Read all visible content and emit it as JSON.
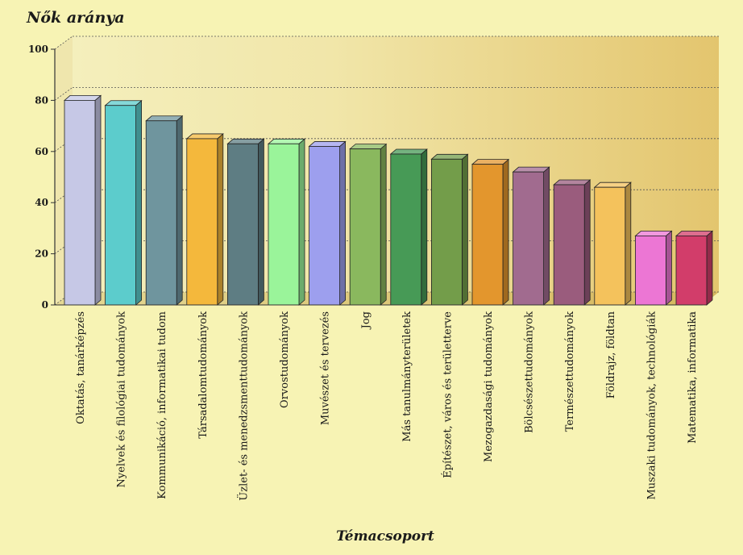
{
  "chart_data": {
    "type": "bar",
    "title": "Nők aránya",
    "xlabel": "Témacsoport",
    "ylabel": "",
    "ylim": [
      0,
      100
    ],
    "yticks": [
      "0",
      "20",
      "40",
      "60",
      "80",
      "100"
    ],
    "grid": true,
    "categories": [
      "Oktatás, tanárképzés",
      "Nyelvek és filológiai tudományok",
      "Kommunikáció, informatikai tudom",
      "Társadalomtudományok",
      "Üzlet- és menedzsmenttudományok",
      "Orvostudományok",
      "Muvészet és tervezés",
      "Jog",
      "Más tanulmányterületek",
      "Építészet, város és területterve",
      "Mezogazdasági tudományok",
      "Bölcsészettudományok",
      "Természettudományok",
      "Földrajz, földtan",
      "Muszaki tudományok, technológiák",
      "Matematika, informatika"
    ],
    "values": [
      80,
      78,
      72,
      65,
      63,
      63,
      62,
      61,
      59,
      57,
      55,
      52,
      47,
      46,
      27,
      27
    ],
    "colors": [
      "#c6c8e6",
      "#5ccccc",
      "#6f959e",
      "#f4b83c",
      "#5e7d83",
      "#9af49a",
      "#9d9fee",
      "#8ab85e",
      "#479a56",
      "#739d4a",
      "#e3962d",
      "#a16b8f",
      "#9a5c7d",
      "#f4c25c",
      "#ec76d4",
      "#d23d6a"
    ]
  }
}
